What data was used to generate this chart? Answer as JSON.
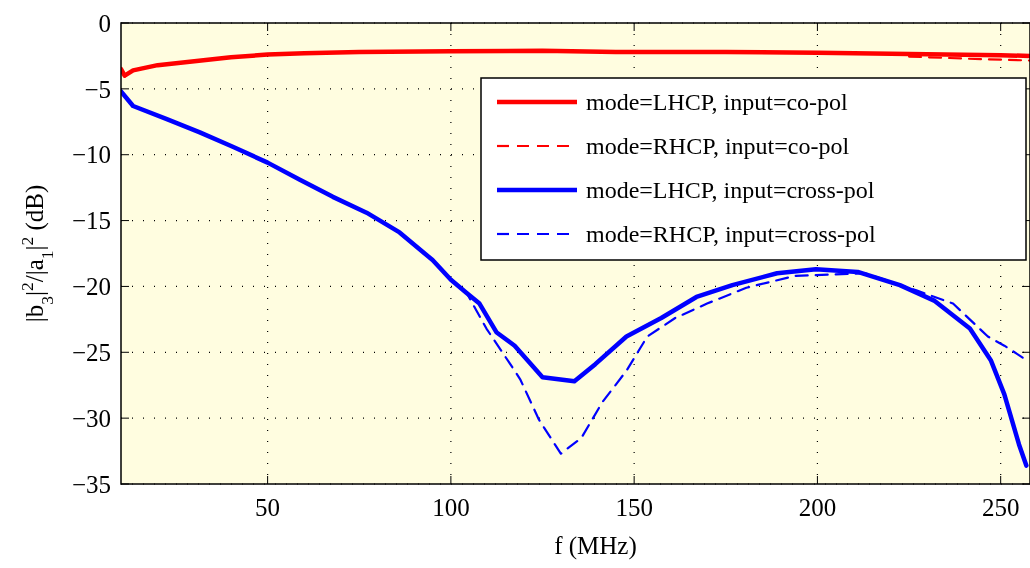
{
  "chart_data": {
    "type": "line",
    "xlabel": "f (MHz)",
    "ylabel": "|b$_{3}$|$^{2}$/|a$_{1}$|$^{2}$ (dB)",
    "xlim": [
      10,
      258
    ],
    "ylim": [
      -35,
      0
    ],
    "xticks": [
      50,
      100,
      150,
      200,
      250
    ],
    "yticks": [
      {
        "value": -35,
        "label": "−35"
      },
      {
        "value": -30,
        "label": "−30"
      },
      {
        "value": -25,
        "label": "−25"
      },
      {
        "value": -20,
        "label": "−20"
      },
      {
        "value": -15,
        "label": "−15"
      },
      {
        "value": -10,
        "label": "−10"
      },
      {
        "value": -5,
        "label": "−5"
      },
      0
    ],
    "grid": true,
    "legend": "top right",
    "series": [
      {
        "name": "mode=LHCP, input=co-pol",
        "color": "#ff0000",
        "line_style": "solid",
        "x": [
          10,
          11,
          13.3,
          20,
          30,
          40,
          50,
          60,
          75,
          100,
          125,
          145,
          175,
          200,
          225,
          250,
          258
        ],
        "values": [
          -3.5,
          -4,
          -3.6,
          -3.2,
          -2.9,
          -2.6,
          -2.4,
          -2.3,
          -2.2,
          -2.15,
          -2.1,
          -2.2,
          -2.2,
          -2.25,
          -2.35,
          -2.45,
          -2.5
        ]
      },
      {
        "name": "mode=RHCP, input=co-pol",
        "color": "#ff0000",
        "line_style": "dashed",
        "x": [
          225,
          235,
          245,
          252,
          258
        ],
        "values": [
          -2.55,
          -2.65,
          -2.75,
          -2.8,
          -2.85
        ]
      },
      {
        "name": "mode=LHCP, input=cross-pol",
        "color": "#0000ff",
        "line_style": "solid",
        "x": [
          10,
          13.3,
          22.5,
          31.5,
          40.5,
          50,
          58.8,
          67.8,
          77,
          86,
          95,
          100,
          104.3,
          107.8,
          112.5,
          117.4,
          125,
          133.7,
          139.4,
          147.9,
          157.4,
          167,
          176.8,
          189,
          199.6,
          211,
          222.5,
          232,
          241.6,
          247.3,
          251,
          255,
          257
        ],
        "values": [
          -5.2,
          -6.3,
          -7.3,
          -8.3,
          -9.4,
          -10.6,
          -11.9,
          -13.2,
          -14.4,
          -15.9,
          -18,
          -19.5,
          -20.5,
          -21.3,
          -23.5,
          -24.5,
          -26.9,
          -27.2,
          -25.9,
          -23.8,
          -22.4,
          -20.8,
          -19.9,
          -19,
          -18.7,
          -18.9,
          -19.9,
          -21.1,
          -23.2,
          -25.6,
          -28.2,
          -32,
          -33.6
        ]
      },
      {
        "name": "mode=RHCP, input=cross-pol",
        "color": "#0000ff",
        "line_style": "dashed",
        "x": [
          10,
          13.3,
          22.5,
          31.5,
          40.5,
          50,
          58.8,
          67.8,
          77,
          86,
          95,
          100,
          104.3,
          109.7,
          117.4,
          119,
          124,
          130,
          135.6,
          141.3,
          147.9,
          153.6,
          161.2,
          169.9,
          180.6,
          193.9,
          203.5,
          213,
          227,
          237,
          246.5,
          251,
          256
        ],
        "values": [
          -5.2,
          -6.3,
          -7.3,
          -8.3,
          -9.4,
          -10.6,
          -11.9,
          -13.2,
          -14.4,
          -15.9,
          -18,
          -19.5,
          -20.5,
          -23.2,
          -26.4,
          -27.1,
          -30.1,
          -32.7,
          -31.5,
          -28.8,
          -26.4,
          -23.8,
          -22.4,
          -21.3,
          -20.1,
          -19.2,
          -19.1,
          -19,
          -20.3,
          -21.3,
          -23.8,
          -24.5,
          -25.4
        ]
      }
    ]
  }
}
